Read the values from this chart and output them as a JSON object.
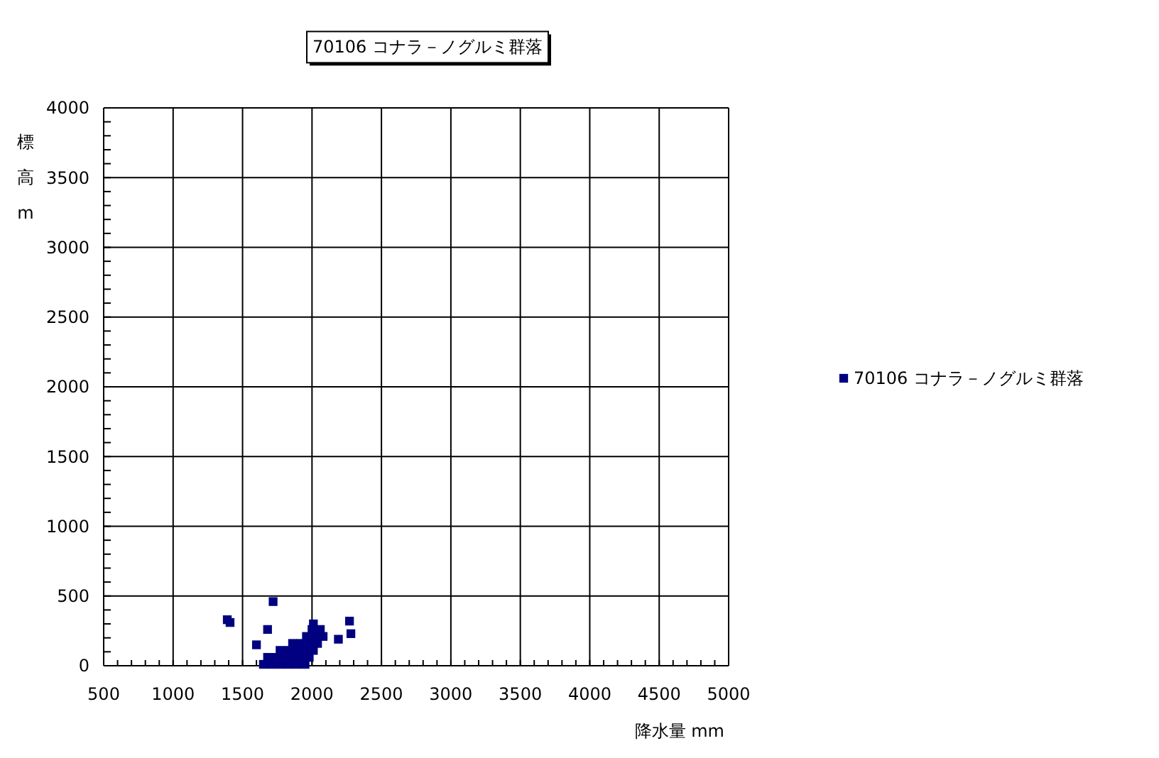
{
  "chart_data": {
    "type": "scatter",
    "title": "70106 コナラ－ノグルミ群落",
    "xlabel": "降水量 mm",
    "ylabel": "標高m",
    "series": [
      {
        "name": "70106 コナラ－ノグルミ群落",
        "color": "#000080",
        "x": [
          1390,
          1410,
          1720,
          1680,
          1600,
          2270,
          2280,
          2190,
          1650,
          1710,
          1770,
          1830,
          1890,
          1950,
          1680,
          1740,
          1800,
          1860,
          1920,
          1980,
          1770,
          1830,
          1890,
          1950,
          2010,
          1860,
          1920,
          1980,
          2040,
          1960,
          2020,
          2080,
          2000,
          2060,
          2010
        ],
        "values": [
          330,
          310,
          460,
          260,
          150,
          320,
          230,
          190,
          10,
          10,
          10,
          10,
          10,
          10,
          60,
          60,
          60,
          60,
          60,
          60,
          110,
          110,
          110,
          110,
          110,
          160,
          160,
          160,
          160,
          210,
          210,
          210,
          260,
          260,
          300
        ]
      }
    ],
    "xlim": [
      500,
      5000
    ],
    "xticks": [
      500,
      {
        "value": 600,
        "label": null
      },
      {
        "value": 700,
        "label": null
      },
      {
        "value": 800,
        "label": null
      },
      {
        "value": 900,
        "label": null
      },
      1000,
      {
        "value": 1100,
        "label": null
      },
      {
        "value": 1200,
        "label": null
      },
      {
        "value": 1300,
        "label": null
      },
      {
        "value": 1400,
        "label": null
      },
      1500,
      {
        "value": 1600,
        "label": null
      },
      {
        "value": 1700,
        "label": null
      },
      {
        "value": 1800,
        "label": null
      },
      {
        "value": 1900,
        "label": null
      },
      2000,
      {
        "value": 2100,
        "label": null
      },
      {
        "value": 2200,
        "label": null
      },
      {
        "value": 2300,
        "label": null
      },
      {
        "value": 2400,
        "label": null
      },
      2500,
      {
        "value": 2600,
        "label": null
      },
      {
        "value": 2700,
        "label": null
      },
      {
        "value": 2800,
        "label": null
      },
      {
        "value": 2900,
        "label": null
      },
      3000,
      {
        "value": 3100,
        "label": null
      },
      {
        "value": 3200,
        "label": null
      },
      {
        "value": 3300,
        "label": null
      },
      {
        "value": 3400,
        "label": null
      },
      3500,
      {
        "value": 3600,
        "label": null
      },
      {
        "value": 3700,
        "label": null
      },
      {
        "value": 3800,
        "label": null
      },
      {
        "value": 3900,
        "label": null
      },
      4000,
      {
        "value": 4100,
        "label": null
      },
      {
        "value": 4200,
        "label": null
      },
      {
        "value": 4300,
        "label": null
      },
      {
        "value": 4400,
        "label": null
      },
      4500,
      {
        "value": 4600,
        "label": null
      },
      {
        "value": 4700,
        "label": null
      },
      {
        "value": 4800,
        "label": null
      },
      {
        "value": 4900,
        "label": null
      },
      5000
    ],
    "ylim": [
      0,
      4000
    ],
    "yticks": [
      0,
      {
        "value": 100,
        "label": null
      },
      {
        "value": 200,
        "label": null
      },
      {
        "value": 300,
        "label": null
      },
      {
        "value": 400,
        "label": null
      },
      500,
      {
        "value": 600,
        "label": null
      },
      {
        "value": 700,
        "label": null
      },
      {
        "value": 800,
        "label": null
      },
      {
        "value": 900,
        "label": null
      },
      1000,
      {
        "value": 1100,
        "label": null
      },
      {
        "value": 1200,
        "label": null
      },
      {
        "value": 1300,
        "label": null
      },
      {
        "value": 1400,
        "label": null
      },
      1500,
      {
        "value": 1600,
        "label": null
      },
      {
        "value": 1700,
        "label": null
      },
      {
        "value": 1800,
        "label": null
      },
      {
        "value": 1900,
        "label": null
      },
      2000,
      {
        "value": 2100,
        "label": null
      },
      {
        "value": 2200,
        "label": null
      },
      {
        "value": 2300,
        "label": null
      },
      {
        "value": 2400,
        "label": null
      },
      2500,
      {
        "value": 2600,
        "label": null
      },
      {
        "value": 2700,
        "label": null
      },
      {
        "value": 2800,
        "label": null
      },
      {
        "value": 2900,
        "label": null
      },
      3000,
      {
        "value": 3100,
        "label": null
      },
      {
        "value": 3200,
        "label": null
      },
      {
        "value": 3300,
        "label": null
      },
      {
        "value": 3400,
        "label": null
      },
      3500,
      {
        "value": 3600,
        "label": null
      },
      {
        "value": 3700,
        "label": null
      },
      {
        "value": 3800,
        "label": null
      },
      {
        "value": 3900,
        "label": null
      },
      4000
    ],
    "grid": true,
    "legend": "right",
    "marker": "square"
  }
}
